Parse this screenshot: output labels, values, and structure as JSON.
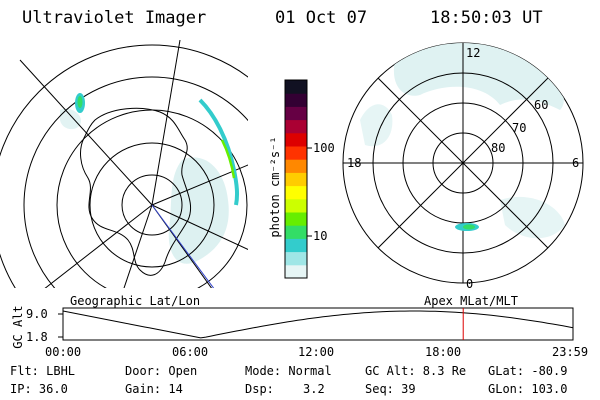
{
  "header": {
    "instrument": "Ultraviolet Imager",
    "date": "01 Oct 07",
    "time": "18:50:03 UT"
  },
  "geographic_panel": {
    "label": "Geographic Lat/Lon"
  },
  "apex_panel": {
    "label": "Apex MLat/MLT",
    "mlt_labels": [
      "12",
      "18",
      "6",
      "0"
    ],
    "mlat_labels": [
      "60",
      "70",
      "80"
    ]
  },
  "colorbar": {
    "unit": "photon cm⁻²s⁻¹",
    "ticks": [
      "100",
      "10"
    ],
    "scale": "log",
    "colors": [
      "#e6f5f5",
      "#9fe6e6",
      "#33cccc",
      "#33dd66",
      "#66ee00",
      "#ccff00",
      "#ffff00",
      "#ffcc00",
      "#ff8800",
      "#ff3300",
      "#dd0000",
      "#aa0033",
      "#660044",
      "#330033",
      "#111122"
    ]
  },
  "altitude_plot": {
    "ylabel": "GC Alt",
    "y_ticks": [
      "9.0",
      "1.8"
    ],
    "x_ticks": [
      "00:00",
      "06:00",
      "12:00",
      "18:00",
      "23:59"
    ],
    "current_marker_time": "18:50",
    "marker_color": "#dd0000"
  },
  "info": {
    "flt": "Flt: LBHL",
    "ip": "IP: 36.0",
    "door": "Door: Open",
    "gain": "Gain: 14",
    "mode": "Mode: Normal",
    "dsp_label": "Dsp:",
    "dsp_value": "3.2",
    "gc_alt": "GC Alt: 8.3 Re",
    "seq": "Seq: 39",
    "glat": "GLat: -80.9",
    "glon": "GLon: 103.0"
  }
}
